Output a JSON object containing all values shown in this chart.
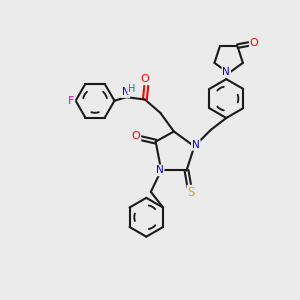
{
  "bg_color": "#ebebeb",
  "atom_colors": {
    "N": "#0000cc",
    "O": "#ff0000",
    "S": "#ccaa00",
    "F": "#dd00dd",
    "H": "#008888",
    "C": "#000000"
  },
  "bond_color": "#1a1a1a",
  "bond_width": 1.5,
  "figsize": [
    3.0,
    3.0
  ],
  "dpi": 100
}
